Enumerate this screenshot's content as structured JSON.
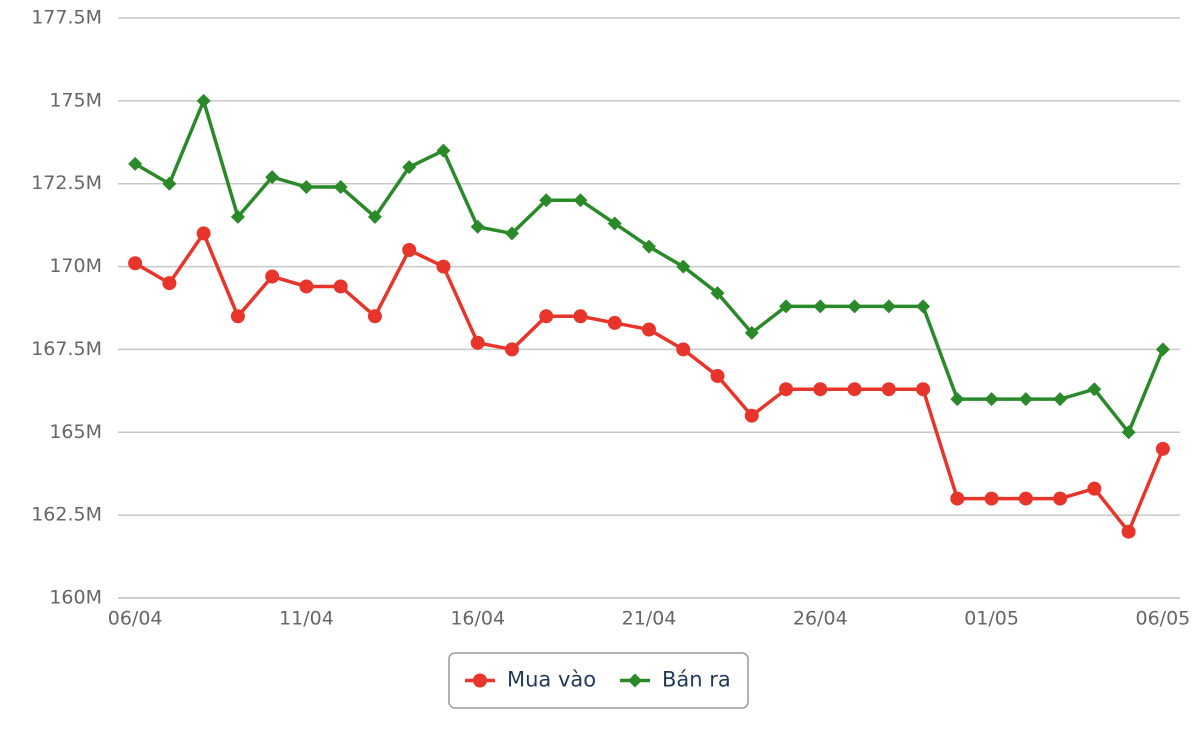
{
  "chart_data": {
    "type": "line",
    "categories": [
      "06/04",
      null,
      null,
      null,
      null,
      "11/04",
      null,
      null,
      null,
      null,
      "16/04",
      null,
      null,
      null,
      null,
      "21/04",
      null,
      null,
      null,
      null,
      "26/04",
      null,
      null,
      null,
      null,
      "01/05",
      null,
      null,
      null,
      null,
      "06/05"
    ],
    "ylim": [
      160000000,
      177500000
    ],
    "yticks": [
      {
        "value": 160000000,
        "label": "160M"
      },
      {
        "value": 162500000,
        "label": "162.5M"
      },
      {
        "value": 165000000,
        "label": "165M"
      },
      {
        "value": 167500000,
        "label": "167.5M"
      },
      {
        "value": 170000000,
        "label": "170M"
      },
      {
        "value": 172500000,
        "label": "172.5M"
      },
      {
        "value": 175000000,
        "label": "175M"
      },
      {
        "value": 177500000,
        "label": "177.5M"
      }
    ],
    "grid": true,
    "series": [
      {
        "name": "Mua vào",
        "color": "#e8352b",
        "marker": "circle",
        "values": [
          170100000,
          169500000,
          171000000,
          168500000,
          169700000,
          169400000,
          169400000,
          168500000,
          170500000,
          170000000,
          167700000,
          167500000,
          168500000,
          168500000,
          168300000,
          168100000,
          167500000,
          166700000,
          165500000,
          166300000,
          166300000,
          166300000,
          166300000,
          166300000,
          163000000,
          163000000,
          163000000,
          163000000,
          163300000,
          162000000,
          164500000
        ]
      },
      {
        "name": "Bán ra",
        "color": "#2a8a2a",
        "marker": "diamond",
        "values": [
          173100000,
          172500000,
          175000000,
          171500000,
          172700000,
          172400000,
          172400000,
          171500000,
          173000000,
          173500000,
          171200000,
          171000000,
          172000000,
          172000000,
          171300000,
          170600000,
          170000000,
          169200000,
          168000000,
          168800000,
          168800000,
          168800000,
          168800000,
          168800000,
          166000000,
          166000000,
          166000000,
          166000000,
          166300000,
          165000000,
          167500000
        ]
      }
    ]
  }
}
